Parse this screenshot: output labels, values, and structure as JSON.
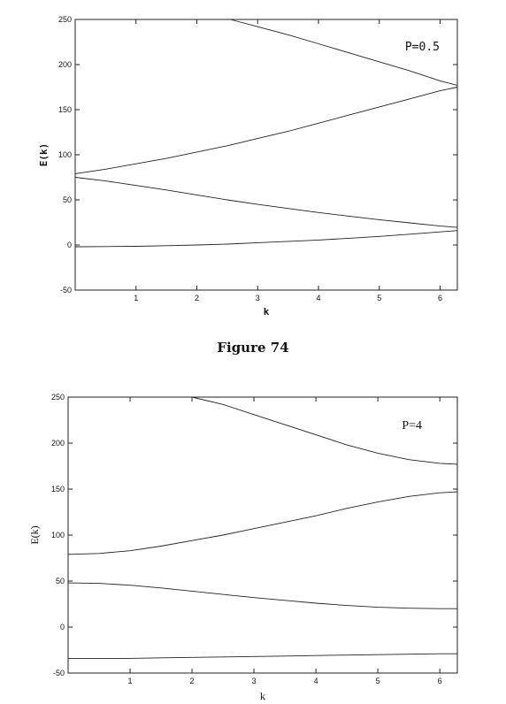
{
  "caption": "Figure 74",
  "chart_data": [
    {
      "type": "line",
      "title": "",
      "xlabel": "k",
      "ylabel": "E(k)",
      "xlim": [
        0,
        6.2832
      ],
      "ylim": [
        -50,
        250
      ],
      "xticks": [
        1,
        2,
        3,
        4,
        5,
        6
      ],
      "yticks": [
        -50,
        0,
        50,
        100,
        150,
        200,
        250
      ],
      "annotation": "P=0.5",
      "grid": false,
      "series": [
        {
          "x": [
            0,
            0.5,
            1,
            1.5,
            2,
            2.5,
            3,
            3.5,
            4,
            4.5,
            5,
            5.5,
            6,
            6.2832
          ],
          "y": [
            -2,
            -1.8,
            -1.5,
            -0.8,
            0,
            1,
            2.5,
            4,
            5.5,
            7.5,
            9.5,
            12,
            14.5,
            16
          ]
        },
        {
          "x": [
            0,
            0.5,
            1,
            1.5,
            2,
            2.5,
            3,
            3.5,
            4,
            4.5,
            5,
            5.5,
            6,
            6.2832
          ],
          "y": [
            75,
            71,
            66,
            61,
            55.5,
            50,
            45,
            40.5,
            36,
            32,
            28,
            24.5,
            21,
            19.5
          ]
        },
        {
          "x": [
            0,
            0.5,
            1,
            1.5,
            2,
            2.5,
            3,
            3.5,
            4,
            4.5,
            5,
            5.5,
            6,
            6.2832
          ],
          "y": [
            79,
            84,
            90,
            96,
            103,
            110,
            118,
            126,
            135,
            144,
            153,
            162,
            171,
            175
          ]
        },
        {
          "x": [
            2.55,
            3,
            3.5,
            4,
            4.5,
            5,
            5.5,
            6,
            6.2832
          ],
          "y": [
            250,
            242,
            233,
            223,
            213,
            203,
            193,
            182,
            177
          ]
        }
      ]
    },
    {
      "type": "line",
      "title": "",
      "xlabel": "k",
      "ylabel": "E(k)",
      "xlim": [
        0,
        6.2832
      ],
      "ylim": [
        -50,
        250
      ],
      "xticks": [
        1,
        2,
        3,
        4,
        5,
        6
      ],
      "yticks": [
        -50,
        0,
        50,
        100,
        150,
        200,
        250
      ],
      "annotation": "P=4",
      "grid": false,
      "series": [
        {
          "x": [
            0,
            0.5,
            1,
            1.5,
            2,
            2.5,
            3,
            3.5,
            4,
            4.5,
            5,
            5.5,
            6,
            6.2832
          ],
          "y": [
            -34,
            -34,
            -34,
            -33.5,
            -33,
            -32.5,
            -32,
            -31.5,
            -31,
            -30.5,
            -30,
            -29.5,
            -29,
            -29
          ]
        },
        {
          "x": [
            0,
            0.5,
            1,
            1.5,
            2,
            2.5,
            3,
            3.5,
            4,
            4.5,
            5,
            5.5,
            6,
            6.2832
          ],
          "y": [
            48,
            47.5,
            45.5,
            42.5,
            39,
            35.5,
            32,
            29,
            26,
            23.5,
            21.5,
            20.5,
            20,
            20
          ]
        },
        {
          "x": [
            0,
            0.5,
            1,
            1.5,
            2,
            2.5,
            3,
            3.5,
            4,
            4.5,
            5,
            5.5,
            6,
            6.2832
          ],
          "y": [
            79,
            80,
            83,
            88,
            94,
            100,
            107,
            114,
            121,
            129,
            136,
            142,
            146,
            147
          ]
        },
        {
          "x": [
            2.0,
            2.5,
            3,
            3.5,
            4,
            4.5,
            5,
            5.5,
            6,
            6.2832
          ],
          "y": [
            250,
            242,
            231,
            220,
            209,
            198,
            189,
            182,
            178,
            177
          ]
        }
      ]
    }
  ]
}
